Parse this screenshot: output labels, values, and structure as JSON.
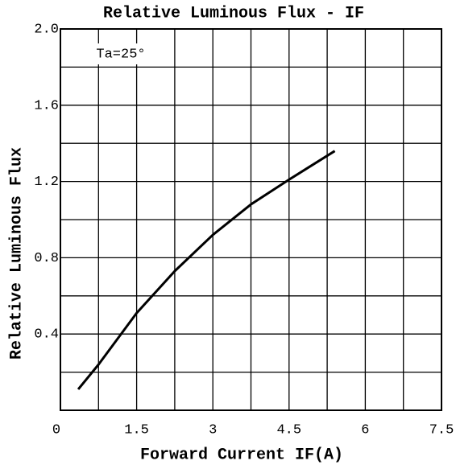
{
  "chart_data": {
    "type": "line",
    "title": "Relative Luminous Flux - IF",
    "annotation": "Ta=25°",
    "x_label": "Forward Current IF(A)",
    "y_label": "Relative Luminous Flux",
    "xlim": [
      0,
      7.5
    ],
    "ylim": [
      0,
      2
    ],
    "xticks": [
      0,
      1.5,
      3,
      4.5,
      6,
      7.5
    ],
    "yticks": [
      0.4,
      0.8,
      1.2,
      1.6,
      {
        "value": 2,
        "label": "2.0"
      }
    ],
    "xgrid": [
      0.75,
      1.5,
      2.25,
      3,
      3.75,
      4.5,
      5.25,
      6,
      6.75
    ],
    "ygrid": [
      0.2,
      0.4,
      0.6,
      0.8,
      1.0,
      1.2,
      1.4,
      1.6,
      1.8
    ],
    "grid": true,
    "series": [
      {
        "color": "#000000",
        "x": [
          0.35,
          0.75,
          1.5,
          2.25,
          3,
          3.75,
          4.5,
          5.4
        ],
        "values": [
          0.11,
          0.24,
          0.51,
          0.73,
          0.92,
          1.08,
          1.21,
          1.36
        ]
      }
    ]
  }
}
